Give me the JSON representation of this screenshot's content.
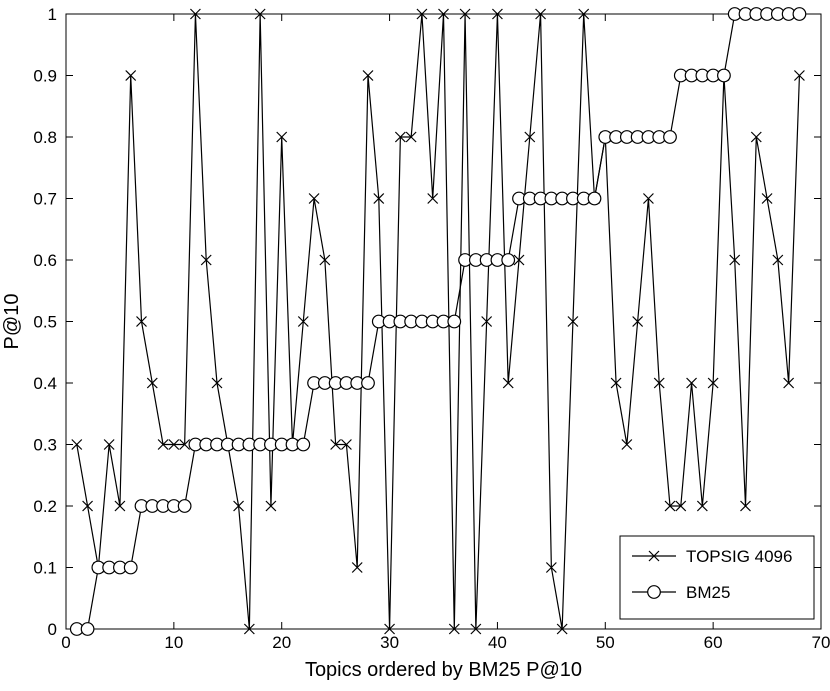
{
  "chart_data": {
    "type": "line",
    "xlabel": "Topics ordered by BM25 P@10",
    "ylabel": "P@10",
    "xlim": [
      0,
      70
    ],
    "ylim": [
      0,
      1
    ],
    "xticks": [
      0,
      10,
      20,
      30,
      40,
      50,
      60,
      70
    ],
    "yticks": [
      0,
      0.1,
      0.2,
      0.3,
      0.4,
      0.5,
      0.6,
      0.7,
      0.8,
      0.9,
      1
    ],
    "grid": false,
    "legend_position": "bottom-right",
    "series": [
      {
        "name": "TOPSIG 4096",
        "marker": "x",
        "color": "#000000",
        "values": [
          0.3,
          0.2,
          0.1,
          0.3,
          0.2,
          0.9,
          0.5,
          0.4,
          0.3,
          0.3,
          0.3,
          1.0,
          0.6,
          0.4,
          0.3,
          0.2,
          0.0,
          1.0,
          0.2,
          0.8,
          0.3,
          0.5,
          0.7,
          0.6,
          0.3,
          0.3,
          0.1,
          0.9,
          0.7,
          0.0,
          0.8,
          0.8,
          1.0,
          0.7,
          1.0,
          0.0,
          1.0,
          0.0,
          0.5,
          1.0,
          0.4,
          0.6,
          0.8,
          1.0,
          0.1,
          0.0,
          0.5,
          1.0,
          0.7,
          0.8,
          0.4,
          0.3,
          0.5,
          0.7,
          0.4,
          0.2,
          0.2,
          0.4,
          0.2,
          0.4,
          0.9,
          0.6,
          0.2,
          0.8,
          0.7,
          0.6,
          0.4,
          0.9
        ]
      },
      {
        "name": "BM25",
        "marker": "o",
        "color": "#000000",
        "values": [
          0.0,
          0.0,
          0.1,
          0.1,
          0.1,
          0.1,
          0.2,
          0.2,
          0.2,
          0.2,
          0.2,
          0.3,
          0.3,
          0.3,
          0.3,
          0.3,
          0.3,
          0.3,
          0.3,
          0.3,
          0.3,
          0.3,
          0.4,
          0.4,
          0.4,
          0.4,
          0.4,
          0.4,
          0.5,
          0.5,
          0.5,
          0.5,
          0.5,
          0.5,
          0.5,
          0.5,
          0.6,
          0.6,
          0.6,
          0.6,
          0.6,
          0.7,
          0.7,
          0.7,
          0.7,
          0.7,
          0.7,
          0.7,
          0.7,
          0.8,
          0.8,
          0.8,
          0.8,
          0.8,
          0.8,
          0.8,
          0.9,
          0.9,
          0.9,
          0.9,
          0.9,
          1.0,
          1.0,
          1.0,
          1.0,
          1.0,
          1.0,
          1.0
        ]
      }
    ]
  }
}
